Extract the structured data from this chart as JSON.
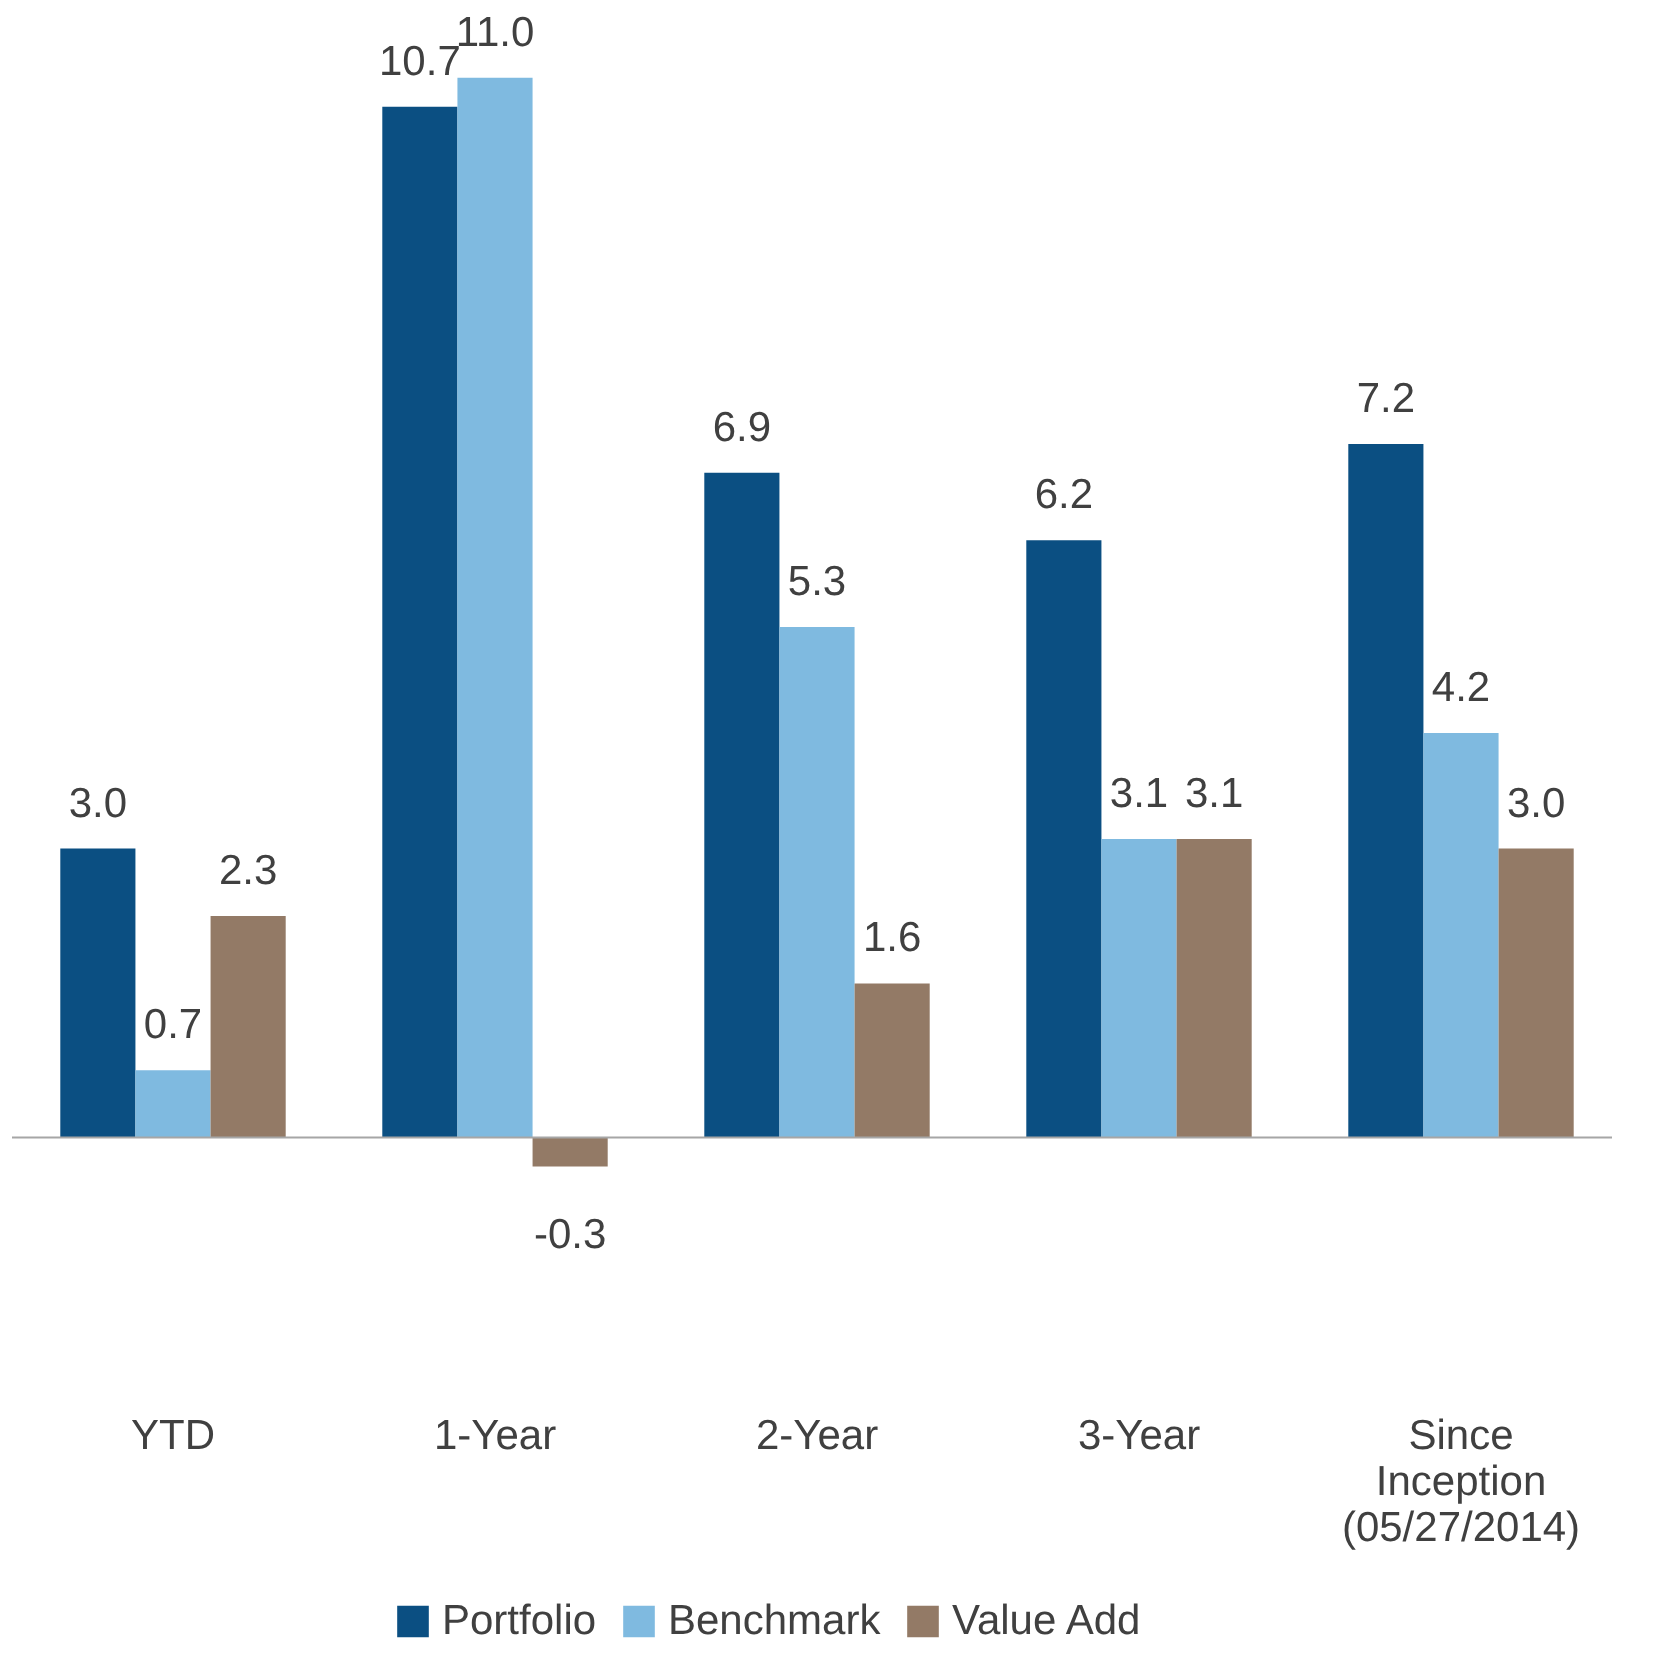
{
  "chart_data": {
    "type": "bar",
    "categories": [
      "YTD",
      "1-Year",
      "2-Year",
      "3-Year",
      "Since\nInception\n(05/27/2014)"
    ],
    "series": [
      {
        "name": "Portfolio",
        "color": "#0b4f82",
        "values": [
          3.0,
          10.7,
          6.9,
          6.2,
          7.2
        ],
        "value_labels": [
          "3.0",
          "10.7",
          "6.9",
          "6.2",
          "7.2"
        ]
      },
      {
        "name": "Benchmark",
        "color": "#7fbae0",
        "values": [
          0.7,
          11.0,
          5.3,
          3.1,
          4.2
        ],
        "value_labels": [
          "0.7",
          "11.0",
          "5.3",
          "3.1",
          "4.2"
        ]
      },
      {
        "name": "Value Add",
        "color": "#937a66",
        "values": [
          2.3,
          -0.3,
          1.6,
          3.1,
          3.0
        ],
        "value_labels": [
          "2.3",
          "-0.3",
          "1.6",
          "3.1",
          "3.0"
        ]
      }
    ],
    "legend": "bottom",
    "grid": false
  }
}
